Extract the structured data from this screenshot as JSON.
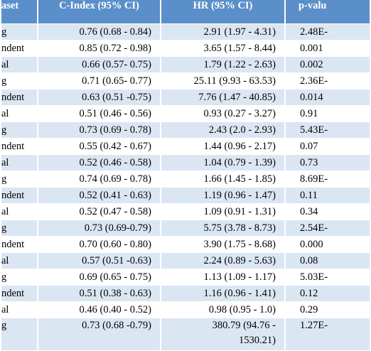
{
  "table": {
    "header": [
      "aset",
      "C-Index (95% CI)",
      "HR (95% CI)",
      "p-valu"
    ],
    "rows": [
      [
        "g",
        "0.76 (0.68 - 0.84)",
        "2.91 (1.97 - 4.31)",
        "2.48E-"
      ],
      [
        "ndent",
        "0.85 (0.72 - 0.98)",
        "3.65 (1.57 - 8.44)",
        "0.001"
      ],
      [
        "al",
        "0.66 (0.57- 0.75)",
        "1.79 (1.22 - 2.63)",
        "0.002"
      ],
      [
        "g",
        "0.71 (0.65- 0.77)",
        "25.11 (9.93 - 63.53)",
        "2.36E-"
      ],
      [
        "ndent",
        "0.63 (0.51 -0.75)",
        "7.76 (1.47 - 40.85)",
        "0.014"
      ],
      [
        "al",
        "0.51 (0.46 - 0.56)",
        "0.93 (0.27 - 3.27)",
        "0.91"
      ],
      [
        "g",
        "0.73 (0.69 - 0.78)",
        "2.43 (2.0 - 2.93)",
        "5.43E-"
      ],
      [
        "ndent",
        "0.55 (0.42 - 0.67)",
        "1.44 (0.96 - 2.17)",
        "0.07"
      ],
      [
        "al",
        "0.52 (0.46 - 0.58)",
        "1.04 (0.79 - 1.39)",
        "0.73"
      ],
      [
        "g",
        "0.74 (0.69 - 0.78)",
        "1.66 (1.45 - 1.85)",
        "8.69E-"
      ],
      [
        "ndent",
        "0.52 (0.41 - 0.63)",
        "1.19 (0.96 - 1.47)",
        "0.11"
      ],
      [
        "al",
        "0.52 (0.47 - 0.58)",
        "1.09 (0.91 - 1.31)",
        "0.34"
      ],
      [
        "g",
        "0.73 (0.69-0.79)",
        "5.75 (3.78 - 8.73)",
        "2.54E-"
      ],
      [
        "ndent",
        "0.70 (0.60 - 0.80)",
        "3.90 (1.75 - 8.68)",
        "0.000"
      ],
      [
        "al",
        "0.57 (0.51 -0.63)",
        "2.24 (0.89 - 5.63)",
        "0.08"
      ],
      [
        "g",
        "0.69 (0.65 - 0.75)",
        "1.13 (1.09 - 1.17)",
        "5.03E-"
      ],
      [
        "ndent",
        "0.51 (0.38 - 0.63)",
        "1.16 (0.96 - 1.41)",
        "0.12"
      ],
      [
        "al",
        "0.46 (0.40 - 0.52)",
        "0.98 (0.95 - 1.0)",
        "0.29"
      ],
      [
        "g",
        "0.73 (0.68 -0.79)",
        "380.79 (94.76 - 1530.21)",
        "1.27E-"
      ]
    ]
  }
}
